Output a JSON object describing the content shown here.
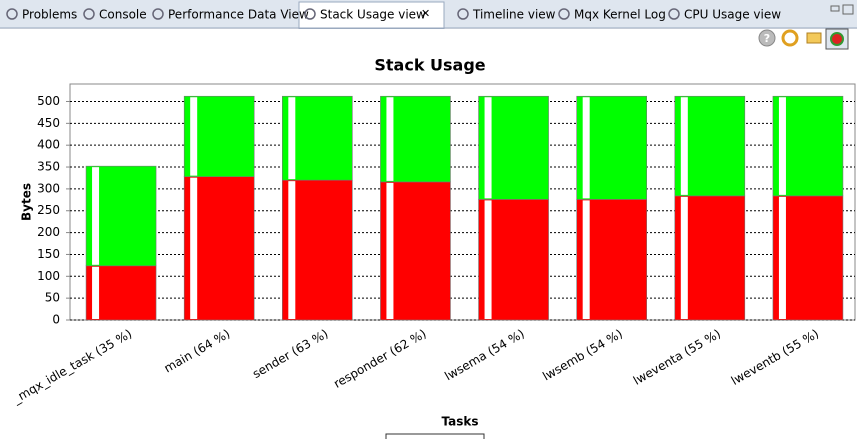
{
  "tabs": [
    "Problems",
    "Console",
    "Performance Data View",
    "Stack Usage view",
    "Timeline view",
    "Mqx Kernel Log",
    "CPU Usage view"
  ],
  "chart_data": {
    "type": "bar",
    "stacked": true,
    "title": "Stack Usage",
    "x_label": "Tasks",
    "y_label": "Bytes",
    "categories": [
      "_mqx_idle_task (35 %)",
      "main (64 %)",
      "sender (63 %)",
      "responder (62 %)",
      "lwsema (54 %)",
      "lwsemb (54 %)",
      "lweventa (55 %)",
      "lweventb (55 %)"
    ],
    "series": [
      {
        "color": "#ff0000",
        "values": [
          124,
          328,
          320,
          316,
          276,
          276,
          284,
          284
        ]
      },
      {
        "color": "#00ff00",
        "values": [
          228,
          184,
          192,
          196,
          236,
          236,
          228,
          228
        ]
      }
    ],
    "ylim": [
      0,
      540
    ],
    "yticks": [
      0,
      50,
      100,
      150,
      200,
      250,
      300,
      350,
      400,
      450,
      500
    ],
    "grid": true
  }
}
